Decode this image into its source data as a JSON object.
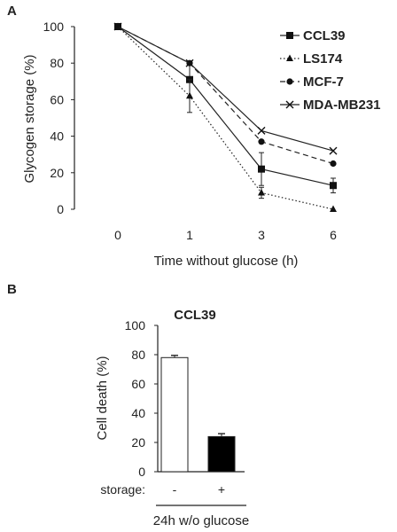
{
  "panels": {
    "a_letter": "A",
    "b_letter": "B"
  },
  "chart_data": [
    {
      "type": "line",
      "panel": "A",
      "title": "",
      "xlabel": "Time without glucose (h)",
      "ylabel": "Glycogen storage  (%)",
      "x": [
        "0",
        "1",
        "3",
        "6"
      ],
      "ylim": [
        0,
        100
      ],
      "yticks": [
        0,
        20,
        40,
        60,
        80,
        100
      ],
      "grid": false,
      "legend_position": "top-right",
      "series": [
        {
          "name": "CCL39",
          "marker": "square",
          "dash": "solid",
          "values": [
            100,
            71,
            22,
            13
          ],
          "errors": [
            0,
            10,
            9,
            4
          ]
        },
        {
          "name": "LS174",
          "marker": "triangle",
          "dash": "dotted",
          "values": [
            100,
            62,
            9,
            0
          ],
          "errors": [
            0,
            9,
            3,
            0
          ]
        },
        {
          "name": "MCF-7",
          "marker": "circle",
          "dash": "dashed",
          "values": [
            100,
            80,
            37,
            25
          ],
          "errors": [
            0,
            0,
            0,
            0
          ]
        },
        {
          "name": "MDA-MB231",
          "marker": "x",
          "dash": "solid",
          "values": [
            100,
            80,
            43,
            32
          ],
          "errors": [
            0,
            0,
            0,
            0
          ]
        }
      ]
    },
    {
      "type": "bar",
      "panel": "B",
      "title": "CCL39",
      "ylabel": "Cell death  (%)",
      "xlabel": "24h w/o glucose",
      "category_row_label": "storage:",
      "categories": [
        "-",
        "+"
      ],
      "values": [
        78,
        24
      ],
      "errors": [
        1.5,
        2
      ],
      "fills": [
        "#ffffff",
        "#000000"
      ],
      "ylim": [
        0,
        100
      ],
      "yticks": [
        0,
        20,
        40,
        60,
        80,
        100
      ],
      "grid": false
    }
  ]
}
